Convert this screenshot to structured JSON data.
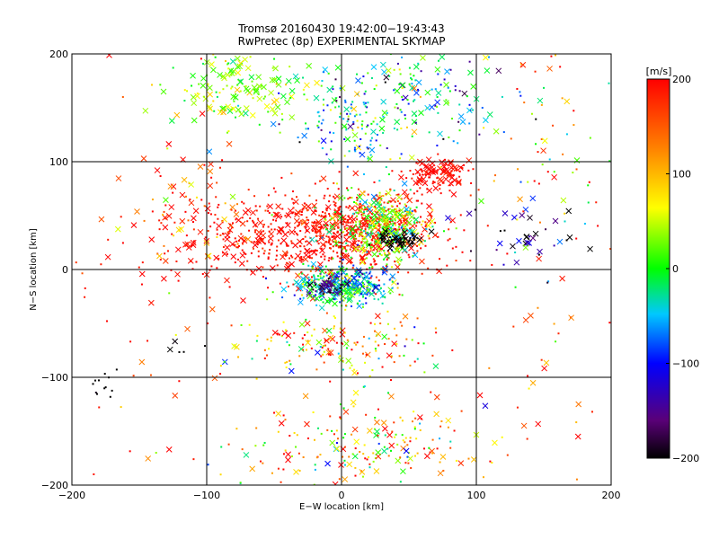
{
  "chart_data": {
    "type": "scatter",
    "title": "Tromsø 20160430 19:42:00−19:43:43",
    "subtitle": "RwPretec (8p) EXPERIMENTAL SKYMAP",
    "xlabel": "E−W location [km]",
    "ylabel": "N−S location [km]",
    "xlim": [
      -200,
      200
    ],
    "ylim": [
      -200,
      200
    ],
    "xticks": [
      -200,
      -100,
      0,
      100,
      200
    ],
    "yticks": [
      -200,
      -100,
      0,
      100,
      200
    ],
    "x_tick_labels": [
      "−200",
      "−100",
      "0",
      "100",
      "200"
    ],
    "y_tick_labels": [
      "−200",
      "−100",
      "0",
      "100",
      "200"
    ],
    "grid": true,
    "colorbar": {
      "label": "[m/s]",
      "range": [
        -200,
        200
      ],
      "ticks": [
        200,
        100,
        0,
        -100,
        -200
      ],
      "tick_labels": [
        "200",
        "100",
        "0",
        "−100",
        "−200"
      ],
      "colors": [
        "#000000",
        "#5a0078",
        "#0000ff",
        "#00c8ff",
        "#00ff00",
        "#ffff00",
        "#ff8000",
        "#ff0000"
      ]
    },
    "marker_types": [
      "dot",
      "x"
    ],
    "clusters": [
      {
        "cx": 10,
        "cy": 35,
        "sx": 32,
        "sy": 20,
        "n": 650,
        "vmean": 190,
        "vsd": 20,
        "xfrac": 0.18
      },
      {
        "cx": -60,
        "cy": 30,
        "sx": 45,
        "sy": 22,
        "n": 300,
        "vmean": 195,
        "vsd": 15,
        "xfrac": 0.35
      },
      {
        "cx": 30,
        "cy": 40,
        "sx": 18,
        "sy": 18,
        "n": 320,
        "vmean": 20,
        "vsd": 45,
        "xfrac": 0.35
      },
      {
        "cx": 42,
        "cy": 27,
        "sx": 7,
        "sy": 4,
        "n": 55,
        "vmean": -200,
        "vsd": 5,
        "xfrac": 0.4
      },
      {
        "cx": 0,
        "cy": -15,
        "sx": 17,
        "sy": 9,
        "n": 380,
        "vmean": -40,
        "vsd": 55,
        "xfrac": 0.25
      },
      {
        "cx": -10,
        "cy": -15,
        "sx": 6,
        "sy": 4,
        "n": 40,
        "vmean": -170,
        "vsd": 15,
        "xfrac": 0.3
      },
      {
        "cx": 72,
        "cy": 88,
        "sx": 12,
        "sy": 8,
        "n": 110,
        "vmean": 195,
        "vsd": 10,
        "xfrac": 0.45
      },
      {
        "cx": -70,
        "cy": 170,
        "sx": 28,
        "sy": 18,
        "n": 160,
        "vmean": 30,
        "vsd": 30,
        "xfrac": 0.6
      },
      {
        "cx": 10,
        "cy": 135,
        "sx": 25,
        "sy": 20,
        "n": 140,
        "vmean": -50,
        "vsd": 60,
        "xfrac": 0.2
      },
      {
        "cx": 60,
        "cy": 165,
        "sx": 40,
        "sy": 25,
        "n": 170,
        "vmean": -30,
        "vsd": 80,
        "xfrac": 0.3
      },
      {
        "cx": 0,
        "cy": -70,
        "sx": 35,
        "sy": 15,
        "n": 170,
        "vmean": 100,
        "vsd": 100,
        "xfrac": 0.25
      },
      {
        "cx": 20,
        "cy": -165,
        "sx": 50,
        "sy": 22,
        "n": 230,
        "vmean": 100,
        "vsd": 100,
        "xfrac": 0.3
      },
      {
        "cx": 140,
        "cy": 25,
        "sx": 20,
        "sy": 20,
        "n": 40,
        "vmean": -160,
        "vsd": 70,
        "xfrac": 0.6
      },
      {
        "cx": -175,
        "cy": -108,
        "sx": 5,
        "sy": 8,
        "n": 12,
        "vmean": -200,
        "vsd": 5,
        "xfrac": 0.1
      },
      {
        "cx": -120,
        "cy": -73,
        "sx": 10,
        "sy": 3,
        "n": 5,
        "vmean": -200,
        "vsd": 5,
        "xfrac": 0.8
      },
      {
        "cx": -100,
        "cy": 60,
        "sx": 25,
        "sy": 40,
        "n": 60,
        "vmean": 150,
        "vsd": 80,
        "xfrac": 0.5
      },
      {
        "cx": 150,
        "cy": 100,
        "sx": 30,
        "sy": 60,
        "n": 70,
        "vmean": 100,
        "vsd": 110,
        "xfrac": 0.3
      },
      {
        "cx": -150,
        "cy": 0,
        "sx": 35,
        "sy": 110,
        "n": 40,
        "vmean": 150,
        "vsd": 60,
        "xfrac": 0.4
      },
      {
        "cx": 150,
        "cy": -100,
        "sx": 25,
        "sy": 80,
        "n": 30,
        "vmean": 180,
        "vsd": 40,
        "xfrac": 0.4
      }
    ]
  }
}
